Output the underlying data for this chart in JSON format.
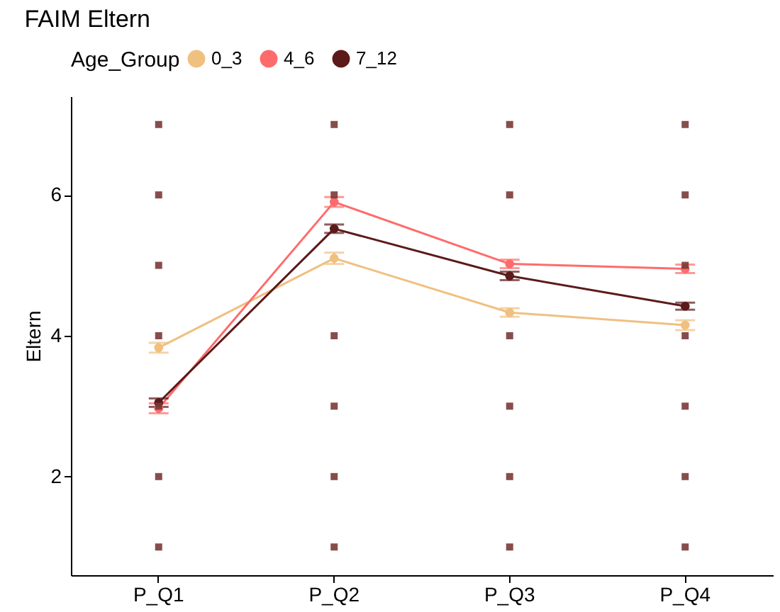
{
  "chart_data": {
    "type": "line",
    "title": "FAIM Eltern",
    "xlabel": null,
    "ylabel": "Eltern",
    "legend_title": "Age_Group",
    "categories": [
      "P_Q1",
      "P_Q2",
      "P_Q3",
      "P_Q4"
    ],
    "series": [
      {
        "name": "0_3",
        "color": "#f0c080",
        "values": [
          3.83,
          5.1,
          4.33,
          4.15
        ],
        "errors": [
          0.07,
          0.08,
          0.06,
          0.07
        ]
      },
      {
        "name": "4_6",
        "color": "#ff6b6b",
        "values": [
          2.97,
          5.9,
          5.02,
          4.95
        ],
        "errors": [
          0.07,
          0.07,
          0.06,
          0.06
        ]
      },
      {
        "name": "7_12",
        "color": "#5c1a1a",
        "values": [
          3.05,
          5.52,
          4.85,
          4.42
        ],
        "errors": [
          0.06,
          0.06,
          0.06,
          0.05
        ]
      },
      {
        "type": "scatter",
        "color": "#7a3a3a",
        "marker": "square",
        "x": [
          "P_Q1",
          "P_Q1",
          "P_Q1",
          "P_Q1",
          "P_Q1",
          "P_Q1",
          "P_Q1",
          "P_Q2",
          "P_Q2",
          "P_Q2",
          "P_Q2",
          "P_Q2",
          "P_Q2",
          "P_Q3",
          "P_Q3",
          "P_Q3",
          "P_Q3",
          "P_Q3",
          "P_Q3",
          "P_Q4",
          "P_Q4",
          "P_Q4",
          "P_Q4",
          "P_Q4",
          "P_Q4",
          "P_Q4"
        ],
        "values": [
          1,
          2,
          3,
          4,
          5,
          6,
          7,
          1,
          2,
          3,
          4,
          6,
          7,
          1,
          2,
          3,
          4,
          6,
          7,
          1,
          2,
          3,
          4,
          5,
          6,
          7
        ]
      }
    ],
    "ylim": [
      0.6,
      7.4
    ],
    "yticks": [
      2,
      4,
      6
    ],
    "grid": false,
    "legend": "top",
    "marker": "circle",
    "line_style": "solid"
  }
}
